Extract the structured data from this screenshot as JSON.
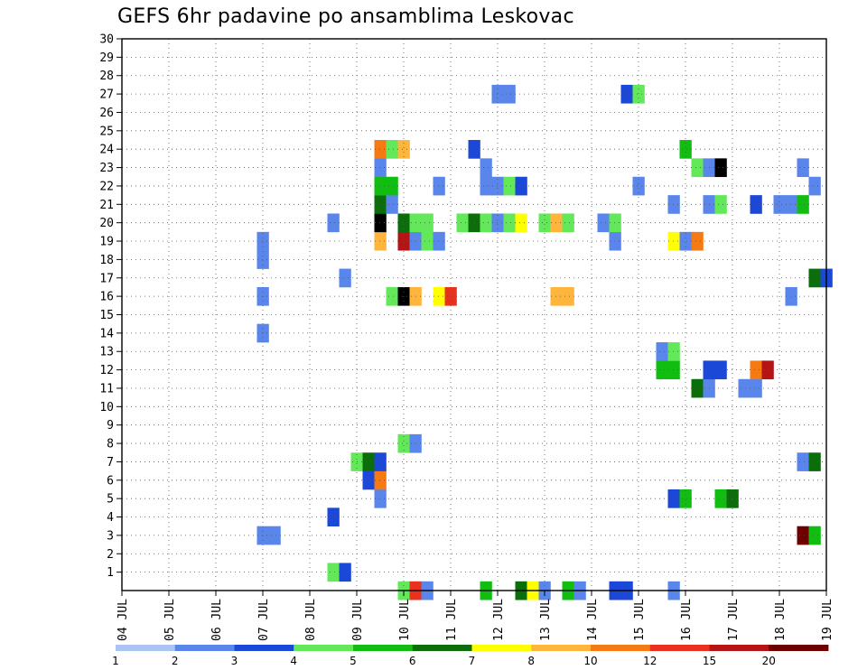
{
  "chart_data": {
    "type": "heatmap",
    "title": "GEFS 6hr padavine po ansamblima Leskovac",
    "xlabel": "",
    "ylabel": "",
    "x_ticks": [
      "04 JUL",
      "05 JUL",
      "06 JUL",
      "07 JUL",
      "08 JUL",
      "09 JUL",
      "10 JUL",
      "11 JUL",
      "12 JUL",
      "13 JUL",
      "14 JUL",
      "15 JUL",
      "16 JUL",
      "17 JUL",
      "18 JUL",
      "19 JUL"
    ],
    "x_range": [
      "04 JUL 00Z",
      "19 JUL 00Z"
    ],
    "x_step": "6hr",
    "y_ticks": [
      1,
      2,
      3,
      4,
      5,
      6,
      7,
      8,
      9,
      10,
      11,
      12,
      13,
      14,
      15,
      16,
      17,
      18,
      19,
      20,
      21,
      22,
      23,
      24,
      25,
      26,
      27,
      28,
      29,
      30
    ],
    "y_range": [
      0,
      30
    ],
    "grid": true,
    "legend": {
      "placement": "bottom",
      "bounds": [
        1,
        2,
        3,
        4,
        5,
        6,
        7,
        8,
        10,
        12,
        15,
        20
      ],
      "colors": [
        "#a9c4f2",
        "#5a86ec",
        "#1c48d8",
        "#63e85a",
        "#12bd12",
        "#0b6e0b",
        "#ffff00",
        "#ffb43c",
        "#f57a14",
        "#e8321e",
        "#b41414",
        "#6e0000"
      ]
    },
    "cells": [
      {
        "x": "10 JUL 00Z",
        "member": 0,
        "level": 3
      },
      {
        "x": "10 JUL 06Z",
        "member": 0,
        "level": 9
      },
      {
        "x": "10 JUL 12Z",
        "member": 0,
        "level": 1
      },
      {
        "x": "11 JUL 18Z",
        "member": 0,
        "level": 4
      },
      {
        "x": "12 JUL 12Z",
        "member": 0,
        "level": 5
      },
      {
        "x": "12 JUL 18Z",
        "member": 0,
        "level": 6
      },
      {
        "x": "12 JUL 18Z",
        "member": 0,
        "level": 6
      },
      {
        "x": "13 JUL 00Z",
        "member": 0,
        "level": 1
      },
      {
        "x": "13 JUL 12Z",
        "member": 0,
        "level": 4
      },
      {
        "x": "13 JUL 18Z",
        "member": 0,
        "level": 1
      },
      {
        "x": "14 JUL 12Z",
        "member": 0,
        "level": 2
      },
      {
        "x": "14 JUL 18Z",
        "member": 0,
        "level": 2
      },
      {
        "x": "15 JUL 18Z",
        "member": 0,
        "level": 1
      },
      {
        "x": "08 JUL 12Z",
        "member": 1,
        "level": 3
      },
      {
        "x": "08 JUL 18Z",
        "member": 1,
        "level": 2
      },
      {
        "x": "07 JUL 00Z",
        "member": 3,
        "level": 1
      },
      {
        "x": "07 JUL 06Z",
        "member": 3,
        "level": 1
      },
      {
        "x": "18 JUL 12Z",
        "member": 3,
        "level": 11
      },
      {
        "x": "18 JUL 18Z",
        "member": 3,
        "level": 4
      },
      {
        "x": "08 JUL 12Z",
        "member": 4,
        "level": 2
      },
      {
        "x": "09 JUL 12Z",
        "member": 5,
        "level": 1
      },
      {
        "x": "15 JUL 18Z",
        "member": 5,
        "level": 2
      },
      {
        "x": "16 JUL 00Z",
        "member": 5,
        "level": 4
      },
      {
        "x": "16 JUL 18Z",
        "member": 5,
        "level": 4
      },
      {
        "x": "17 JUL 00Z",
        "member": 5,
        "level": 5
      },
      {
        "x": "09 JUL 06Z",
        "member": 6,
        "level": 2
      },
      {
        "x": "09 JUL 12Z",
        "member": 6,
        "level": 8
      },
      {
        "x": "09 JUL 00Z",
        "member": 7,
        "level": 3
      },
      {
        "x": "09 JUL 06Z",
        "member": 7,
        "level": 5
      },
      {
        "x": "09 JUL 12Z",
        "member": 7,
        "level": 2
      },
      {
        "x": "18 JUL 12Z",
        "member": 7,
        "level": 1
      },
      {
        "x": "18 JUL 18Z",
        "member": 7,
        "level": 5
      },
      {
        "x": "10 JUL 00Z",
        "member": 8,
        "level": 3
      },
      {
        "x": "10 JUL 06Z",
        "member": 8,
        "level": 1
      },
      {
        "x": "16 JUL 06Z",
        "member": 11,
        "level": 5
      },
      {
        "x": "16 JUL 12Z",
        "member": 11,
        "level": 1
      },
      {
        "x": "17 JUL 06Z",
        "member": 11,
        "level": 1
      },
      {
        "x": "17 JUL 12Z",
        "member": 11,
        "level": 1
      },
      {
        "x": "15 JUL 12Z",
        "member": 12,
        "level": 4
      },
      {
        "x": "15 JUL 18Z",
        "member": 12,
        "level": 4
      },
      {
        "x": "16 JUL 12Z",
        "member": 12,
        "level": 2
      },
      {
        "x": "16 JUL 18Z",
        "member": 12,
        "level": 2
      },
      {
        "x": "17 JUL 12Z",
        "member": 12,
        "level": 8
      },
      {
        "x": "17 JUL 18Z",
        "member": 12,
        "level": 10
      },
      {
        "x": "15 JUL 12Z",
        "member": 13,
        "level": 1
      },
      {
        "x": "15 JUL 18Z",
        "member": 13,
        "level": 3
      },
      {
        "x": "07 JUL 00Z",
        "member": 14,
        "level": 1
      },
      {
        "x": "07 JUL 00Z",
        "member": 16,
        "level": 1
      },
      {
        "x": "09 JUL 18Z",
        "member": 16,
        "level": 3
      },
      {
        "x": "10 JUL 00Z",
        "member": 16,
        "level": 12
      },
      {
        "x": "10 JUL 06Z",
        "member": 16,
        "level": 7
      },
      {
        "x": "10 JUL 18Z",
        "member": 16,
        "level": 6
      },
      {
        "x": "11 JUL 00Z",
        "member": 16,
        "level": 9
      },
      {
        "x": "13 JUL 06Z",
        "member": 16,
        "level": 7
      },
      {
        "x": "13 JUL 12Z",
        "member": 16,
        "level": 7
      },
      {
        "x": "18 JUL 06Z",
        "member": 16,
        "level": 1
      },
      {
        "x": "08 JUL 18Z",
        "member": 17,
        "level": 1
      },
      {
        "x": "18 JUL 18Z",
        "member": 17,
        "level": 5
      },
      {
        "x": "19 JUL 00Z",
        "member": 17,
        "level": 2
      },
      {
        "x": "07 JUL 00Z",
        "member": 18,
        "level": 1
      },
      {
        "x": "07 JUL 00Z",
        "member": 19,
        "level": 1
      },
      {
        "x": "09 JUL 12Z",
        "member": 19,
        "level": 7
      },
      {
        "x": "10 JUL 00Z",
        "member": 19,
        "level": 10
      },
      {
        "x": "10 JUL 06Z",
        "member": 19,
        "level": 1
      },
      {
        "x": "10 JUL 12Z",
        "member": 19,
        "level": 3
      },
      {
        "x": "10 JUL 18Z",
        "member": 19,
        "level": 1
      },
      {
        "x": "14 JUL 12Z",
        "member": 19,
        "level": 1
      },
      {
        "x": "15 JUL 18Z",
        "member": 19,
        "level": 6
      },
      {
        "x": "16 JUL 00Z",
        "member": 19,
        "level": 1
      },
      {
        "x": "16 JUL 06Z",
        "member": 19,
        "level": 8
      },
      {
        "x": "08 JUL 12Z",
        "member": 20,
        "level": 1
      },
      {
        "x": "09 JUL 12Z",
        "member": 20,
        "level": 12
      },
      {
        "x": "10 JUL 00Z",
        "member": 20,
        "level": 5
      },
      {
        "x": "10 JUL 06Z",
        "member": 20,
        "level": 3
      },
      {
        "x": "10 JUL 12Z",
        "member": 20,
        "level": 3
      },
      {
        "x": "11 JUL 06Z",
        "member": 20,
        "level": 3
      },
      {
        "x": "11 JUL 12Z",
        "member": 20,
        "level": 5
      },
      {
        "x": "11 JUL 18Z",
        "member": 20,
        "level": 3
      },
      {
        "x": "12 JUL 00Z",
        "member": 20,
        "level": 1
      },
      {
        "x": "12 JUL 06Z",
        "member": 20,
        "level": 3
      },
      {
        "x": "12 JUL 12Z",
        "member": 20,
        "level": 6
      },
      {
        "x": "13 JUL 00Z",
        "member": 20,
        "level": 3
      },
      {
        "x": "13 JUL 06Z",
        "member": 20,
        "level": 7
      },
      {
        "x": "13 JUL 12Z",
        "member": 20,
        "level": 3
      },
      {
        "x": "14 JUL 06Z",
        "member": 20,
        "level": 1
      },
      {
        "x": "14 JUL 12Z",
        "member": 20,
        "level": 3
      },
      {
        "x": "09 JUL 12Z",
        "member": 21,
        "level": 5
      },
      {
        "x": "09 JUL 18Z",
        "member": 21,
        "level": 1
      },
      {
        "x": "15 JUL 18Z",
        "member": 21,
        "level": 1
      },
      {
        "x": "16 JUL 12Z",
        "member": 21,
        "level": 1
      },
      {
        "x": "16 JUL 18Z",
        "member": 21,
        "level": 3
      },
      {
        "x": "17 JUL 12Z",
        "member": 21,
        "level": 2
      },
      {
        "x": "18 JUL 00Z",
        "member": 21,
        "level": 1
      },
      {
        "x": "18 JUL 06Z",
        "member": 21,
        "level": 1
      },
      {
        "x": "18 JUL 12Z",
        "member": 21,
        "level": 4
      },
      {
        "x": "09 JUL 12Z",
        "member": 22,
        "level": 4
      },
      {
        "x": "09 JUL 18Z",
        "member": 22,
        "level": 4
      },
      {
        "x": "10 JUL 18Z",
        "member": 22,
        "level": 1
      },
      {
        "x": "11 JUL 18Z",
        "member": 22,
        "level": 1
      },
      {
        "x": "12 JUL 00Z",
        "member": 22,
        "level": 1
      },
      {
        "x": "12 JUL 06Z",
        "member": 22,
        "level": 3
      },
      {
        "x": "12 JUL 12Z",
        "member": 22,
        "level": 2
      },
      {
        "x": "15 JUL 00Z",
        "member": 22,
        "level": 1
      },
      {
        "x": "18 JUL 18Z",
        "member": 22,
        "level": 1
      },
      {
        "x": "09 JUL 12Z",
        "member": 23,
        "level": 1
      },
      {
        "x": "11 JUL 18Z",
        "member": 23,
        "level": 1
      },
      {
        "x": "16 JUL 06Z",
        "member": 23,
        "level": 3
      },
      {
        "x": "16 JUL 12Z",
        "member": 23,
        "level": 1
      },
      {
        "x": "16 JUL 18Z",
        "member": 23,
        "level": 12
      },
      {
        "x": "18 JUL 12Z",
        "member": 23,
        "level": 1
      },
      {
        "x": "09 JUL 12Z",
        "member": 24,
        "level": 8
      },
      {
        "x": "09 JUL 18Z",
        "member": 24,
        "level": 3
      },
      {
        "x": "10 JUL 00Z",
        "member": 24,
        "level": 7
      },
      {
        "x": "11 JUL 12Z",
        "member": 24,
        "level": 2
      },
      {
        "x": "16 JUL 00Z",
        "member": 24,
        "level": 4
      },
      {
        "x": "12 JUL 00Z",
        "member": 27,
        "level": 1
      },
      {
        "x": "12 JUL 06Z",
        "member": 27,
        "level": 1
      },
      {
        "x": "14 JUL 18Z",
        "member": 27,
        "level": 2
      },
      {
        "x": "15 JUL 00Z",
        "member": 27,
        "level": 3
      }
    ]
  }
}
